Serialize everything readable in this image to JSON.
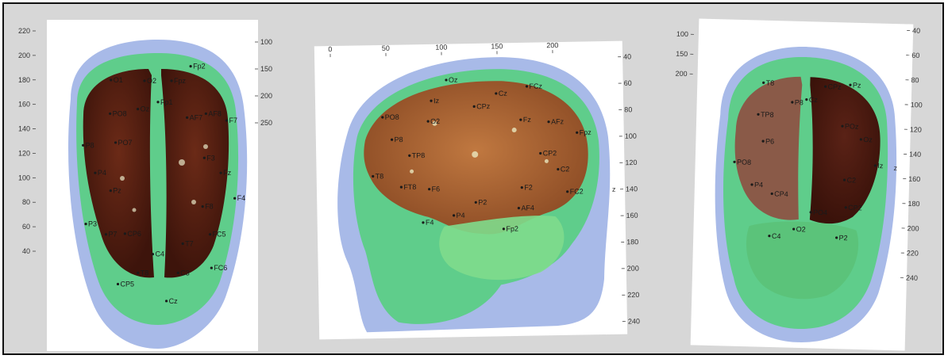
{
  "panels": [
    {
      "view": "top",
      "left_ticks": [
        "220",
        "200",
        "180",
        "160",
        "140",
        "120",
        "100",
        "80",
        "60",
        "40"
      ],
      "right_ticks": [
        "100",
        "150",
        "200",
        "250"
      ],
      "electrodes": [
        "Fp1",
        "Fpz",
        "Fp2",
        "AF7",
        "AF8",
        "F7",
        "F3",
        "Fz",
        "F4",
        "F8",
        "FC5",
        "FC6",
        "T7",
        "C3",
        "Cz",
        "C4",
        "T8",
        "CP5",
        "CP6",
        "P7",
        "P3",
        "Pz",
        "P4",
        "P8",
        "PO7",
        "PO8",
        "O1",
        "Oz",
        "O2"
      ]
    },
    {
      "view": "side",
      "top_ticks": [
        "0",
        "50",
        "100",
        "150",
        "200"
      ],
      "right_ticks": [
        "40",
        "60",
        "80",
        "100",
        "120",
        "140",
        "160",
        "180",
        "200",
        "220",
        "240"
      ],
      "axis_label": "z",
      "electrodes": [
        "CPz",
        "Cz",
        "FCz",
        "Fz",
        "AFz",
        "Fpz",
        "CP2",
        "C2",
        "FC2",
        "F2",
        "AF4",
        "Fp2",
        "P2",
        "P4",
        "F4",
        "F6",
        "FT8",
        "T8",
        "TP8",
        "P8",
        "PO8",
        "O2",
        "Iz",
        "Oz"
      ]
    },
    {
      "view": "back",
      "left_ticks": [
        "100",
        "150",
        "200"
      ],
      "right_ticks": [
        "40",
        "60",
        "80",
        "100",
        "120",
        "140",
        "160",
        "180",
        "200",
        "220",
        "240"
      ],
      "axis_label": "z",
      "electrodes": [
        "Cz",
        "CPz",
        "Pz",
        "POz",
        "Oz",
        "Iz",
        "C2",
        "CP2",
        "P2",
        "PO4",
        "O2",
        "C4",
        "CP4",
        "P4",
        "PO8",
        "P6",
        "TP8",
        "T8",
        "P8"
      ]
    }
  ],
  "colors": {
    "background": "#d7d7d7",
    "panel": "#ffffff",
    "scalp": "#9fb3e6",
    "skull": "#52d07a",
    "brain_dark": "#4a1d12",
    "brain_light": "#b5693a"
  }
}
